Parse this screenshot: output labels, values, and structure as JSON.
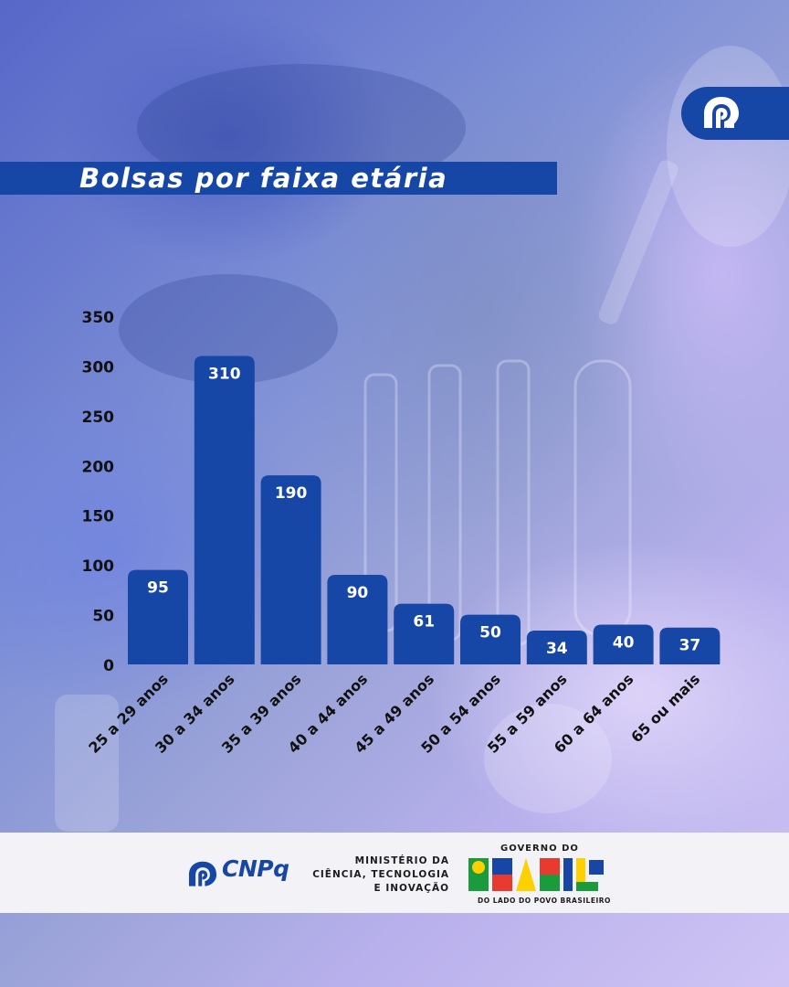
{
  "header": {
    "title": "Bolsas por faixa etária"
  },
  "colors": {
    "bar": "#1747a6",
    "axis_text": "#111111",
    "label_text": "#ffffff"
  },
  "chart_data": {
    "type": "bar",
    "categories": [
      "25 a 29 anos",
      "30 a 34 anos",
      "35 a 39 anos",
      "40 a 44 anos",
      "45 a 49 anos",
      "50 a 54 anos",
      "55 a 59 anos",
      "60 a 64 anos",
      "65 ou mais"
    ],
    "values": [
      95,
      310,
      190,
      90,
      61,
      50,
      34,
      40,
      37
    ],
    "yticks": [
      0,
      50,
      100,
      150,
      200,
      250,
      300,
      350
    ],
    "ylim": [
      0,
      350
    ],
    "xlabel": "",
    "ylabel": "",
    "grid": false,
    "legend": "none"
  },
  "footer": {
    "cnpq_label": "CNPq",
    "ministry_line1": "MINISTÉRIO DA",
    "ministry_line2": "CIÊNCIA, TECNOLOGIA",
    "ministry_line3": "E INOVAÇÃO",
    "gov_top": "GOVERNO DO",
    "gov_word": "BRASIL",
    "gov_bottom": "DO LADO DO POVO BRASILEIRO"
  },
  "icons": {
    "top_logo": "cnpq-logo-icon",
    "footer_logo": "cnpq-logo-icon"
  }
}
